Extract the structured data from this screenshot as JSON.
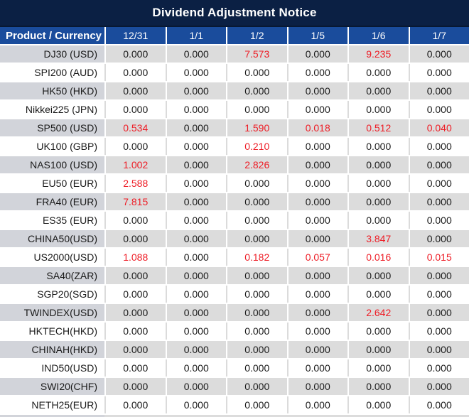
{
  "title": "Dividend Adjustment Notice",
  "colors": {
    "title_bg": "#0B2044",
    "header_bg": "#1A4C9C",
    "row_gray": "#DCDCDC",
    "product_gray": "#D2D4DA",
    "red_value": "#EE1C25",
    "value_text": "#1A1A1A",
    "header_text": "#FFFFFF"
  },
  "table": {
    "product_header": "Product / Currency",
    "date_headers": [
      "12/31",
      "1/1",
      "1/2",
      "1/5",
      "1/6",
      "1/7"
    ],
    "rows": [
      {
        "product": "DJ30 (USD)",
        "values": [
          "0.000",
          "0.000",
          "7.573",
          "0.000",
          "9.235",
          "0.000"
        ],
        "red": [
          0,
          0,
          1,
          0,
          1,
          0
        ]
      },
      {
        "product": "SPI200 (AUD)",
        "values": [
          "0.000",
          "0.000",
          "0.000",
          "0.000",
          "0.000",
          "0.000"
        ],
        "red": [
          0,
          0,
          0,
          0,
          0,
          0
        ]
      },
      {
        "product": "HK50 (HKD)",
        "values": [
          "0.000",
          "0.000",
          "0.000",
          "0.000",
          "0.000",
          "0.000"
        ],
        "red": [
          0,
          0,
          0,
          0,
          0,
          0
        ]
      },
      {
        "product": "Nikkei225 (JPN)",
        "values": [
          "0.000",
          "0.000",
          "0.000",
          "0.000",
          "0.000",
          "0.000"
        ],
        "red": [
          0,
          0,
          0,
          0,
          0,
          0
        ]
      },
      {
        "product": "SP500 (USD)",
        "values": [
          "0.534",
          "0.000",
          "1.590",
          "0.018",
          "0.512",
          "0.040"
        ],
        "red": [
          1,
          0,
          1,
          1,
          1,
          1
        ]
      },
      {
        "product": "UK100 (GBP)",
        "values": [
          "0.000",
          "0.000",
          "0.210",
          "0.000",
          "0.000",
          "0.000"
        ],
        "red": [
          0,
          0,
          1,
          0,
          0,
          0
        ]
      },
      {
        "product": "NAS100 (USD)",
        "values": [
          "1.002",
          "0.000",
          "2.826",
          "0.000",
          "0.000",
          "0.000"
        ],
        "red": [
          1,
          0,
          1,
          0,
          0,
          0
        ]
      },
      {
        "product": "EU50 (EUR)",
        "values": [
          "2.588",
          "0.000",
          "0.000",
          "0.000",
          "0.000",
          "0.000"
        ],
        "red": [
          1,
          0,
          0,
          0,
          0,
          0
        ]
      },
      {
        "product": "FRA40 (EUR)",
        "values": [
          "7.815",
          "0.000",
          "0.000",
          "0.000",
          "0.000",
          "0.000"
        ],
        "red": [
          1,
          0,
          0,
          0,
          0,
          0
        ]
      },
      {
        "product": "ES35 (EUR)",
        "values": [
          "0.000",
          "0.000",
          "0.000",
          "0.000",
          "0.000",
          "0.000"
        ],
        "red": [
          0,
          0,
          0,
          0,
          0,
          0
        ]
      },
      {
        "product": "CHINA50(USD)",
        "values": [
          "0.000",
          "0.000",
          "0.000",
          "0.000",
          "3.847",
          "0.000"
        ],
        "red": [
          0,
          0,
          0,
          0,
          1,
          0
        ]
      },
      {
        "product": "US2000(USD)",
        "values": [
          "1.088",
          "0.000",
          "0.182",
          "0.057",
          "0.016",
          "0.015"
        ],
        "red": [
          1,
          0,
          1,
          1,
          1,
          1
        ]
      },
      {
        "product": "SA40(ZAR)",
        "values": [
          "0.000",
          "0.000",
          "0.000",
          "0.000",
          "0.000",
          "0.000"
        ],
        "red": [
          0,
          0,
          0,
          0,
          0,
          0
        ]
      },
      {
        "product": "SGP20(SGD)",
        "values": [
          "0.000",
          "0.000",
          "0.000",
          "0.000",
          "0.000",
          "0.000"
        ],
        "red": [
          0,
          0,
          0,
          0,
          0,
          0
        ]
      },
      {
        "product": "TWINDEX(USD)",
        "values": [
          "0.000",
          "0.000",
          "0.000",
          "0.000",
          "2.642",
          "0.000"
        ],
        "red": [
          0,
          0,
          0,
          0,
          1,
          0
        ]
      },
      {
        "product": "HKTECH(HKD)",
        "values": [
          "0.000",
          "0.000",
          "0.000",
          "0.000",
          "0.000",
          "0.000"
        ],
        "red": [
          0,
          0,
          0,
          0,
          0,
          0
        ]
      },
      {
        "product": "CHINAH(HKD)",
        "values": [
          "0.000",
          "0.000",
          "0.000",
          "0.000",
          "0.000",
          "0.000"
        ],
        "red": [
          0,
          0,
          0,
          0,
          0,
          0
        ]
      },
      {
        "product": "IND50(USD)",
        "values": [
          "0.000",
          "0.000",
          "0.000",
          "0.000",
          "0.000",
          "0.000"
        ],
        "red": [
          0,
          0,
          0,
          0,
          0,
          0
        ]
      },
      {
        "product": "SWI20(CHF)",
        "values": [
          "0.000",
          "0.000",
          "0.000",
          "0.000",
          "0.000",
          "0.000"
        ],
        "red": [
          0,
          0,
          0,
          0,
          0,
          0
        ]
      },
      {
        "product": "NETH25(EUR)",
        "values": [
          "0.000",
          "0.000",
          "0.000",
          "0.000",
          "0.000",
          "0.000"
        ],
        "red": [
          0,
          0,
          0,
          0,
          0,
          0
        ]
      }
    ]
  }
}
